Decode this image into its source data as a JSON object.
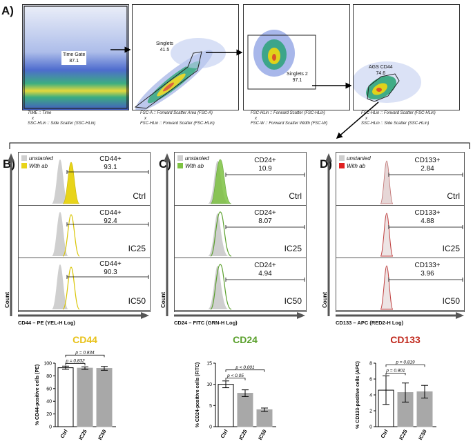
{
  "panel_a": {
    "letter": "A)",
    "plots": [
      {
        "gate_name": "Time Gate",
        "gate_value": "87.1",
        "x_axis": "TIME :: Time",
        "sep": "x",
        "y_axis": "SSC-HLin :: Side Scatter (SSC-HLin)"
      },
      {
        "gate_name": "Singlets",
        "gate_value": "41.5",
        "x_axis": "FSC-A :: Forward Scatter Area (FSC-A)",
        "sep": "x",
        "y_axis": "FSC-HLin :: Forward Scatter (FSC-HLin)"
      },
      {
        "gate_name": "Singlets 2",
        "gate_value": "97.1",
        "x_axis": "FSC-HLin :: Forward Scatter (FSC-HLin)",
        "sep": "x",
        "y_axis": "FSC-W :: Forward Scatter Width (FSC-W)"
      },
      {
        "gate_name": "AGS CD44",
        "gate_value": "74.6",
        "x_axis": "FSC-HLin :: Forward Scatter (FSC-HLin)",
        "sep": "x",
        "y_axis": "SSC-HLin :: Side Scatter (SSC-HLin)"
      }
    ]
  },
  "histograms": [
    {
      "letter": "B)",
      "legend": {
        "unstained": "unstanied",
        "with_ab": "With ab"
      },
      "color": "#e8d41a",
      "x_label": "CD44 – PE (YEL-H Log)",
      "count_label": "Count",
      "rows": [
        {
          "condition": "Ctrl",
          "marker": "CD44+",
          "value": "93.1"
        },
        {
          "condition": "IC25",
          "marker": "CD44+",
          "value": "92.4"
        },
        {
          "condition": "IC50",
          "marker": "CD44+",
          "value": "90.3"
        }
      ]
    },
    {
      "letter": "C)",
      "legend": {
        "unstained": "unstanied",
        "with_ab": "With ab"
      },
      "color": "#7dc242",
      "x_label": "CD24 – FITC (GRN-H Log)",
      "count_label": "Count",
      "rows": [
        {
          "condition": "Ctrl",
          "marker": "CD24+",
          "value": "10.9"
        },
        {
          "condition": "IC25",
          "marker": "CD24+",
          "value": "8.07"
        },
        {
          "condition": "IC50",
          "marker": "CD24+",
          "value": "4.94"
        }
      ]
    },
    {
      "letter": "D)",
      "legend": {
        "unstained": "unstanied",
        "with_ab": "With ab"
      },
      "color": "#c0392b",
      "x_label": "CD133 – APC (RED2-H Log)",
      "count_label": "Count",
      "rows": [
        {
          "condition": "Ctrl",
          "marker": "CD133+",
          "value": "2.84"
        },
        {
          "condition": "IC25",
          "marker": "CD133+",
          "value": "4.88"
        },
        {
          "condition": "IC50",
          "marker": "CD133+",
          "value": "3.96"
        }
      ]
    }
  ],
  "chart_data": [
    {
      "type": "bar",
      "title": "CD44",
      "title_color": "#e8c21a",
      "categories": [
        "Ctrl",
        "IC25",
        "IC50"
      ],
      "values": [
        92.8,
        92.2,
        91.8
      ],
      "errors": [
        2.5,
        2.0,
        3.0
      ],
      "ylabel": "% CD44-positive cells (PE)",
      "ylim": [
        0,
        100
      ],
      "yticks": [
        0,
        20,
        40,
        60,
        80,
        100
      ],
      "annotations": [
        {
          "text": "p = 0.832",
          "from": 0,
          "to": 1
        },
        {
          "text": "p = 0.834",
          "from": 0,
          "to": 2
        }
      ]
    },
    {
      "type": "bar",
      "title": "CD24",
      "title_color": "#5aa02c",
      "categories": [
        "Ctrl",
        "IC25",
        "IC50"
      ],
      "values": [
        10.0,
        7.9,
        4.0
      ],
      "errors": [
        0.8,
        0.8,
        0.4
      ],
      "ylabel": "% CD24-positive cells (FITC)",
      "ylim": [
        0,
        15
      ],
      "yticks": [
        0,
        5,
        10,
        15
      ],
      "annotations": [
        {
          "text": "p < 0.05",
          "from": 0,
          "to": 1
        },
        {
          "text": "p < 0.001",
          "from": 0,
          "to": 2
        }
      ]
    },
    {
      "type": "bar",
      "title": "CD133",
      "title_color": "#c0271b",
      "categories": [
        "Ctrl",
        "IC25",
        "IC50"
      ],
      "values": [
        4.6,
        4.3,
        4.4
      ],
      "errors": [
        1.8,
        1.2,
        0.8
      ],
      "ylabel": "% CD133-positive cells (APC)",
      "ylim": [
        0,
        8
      ],
      "yticks": [
        0,
        2,
        4,
        6,
        8
      ],
      "annotations": [
        {
          "text": "p = 0.801",
          "from": 0,
          "to": 1
        },
        {
          "text": "p = 0.819",
          "from": 0,
          "to": 2
        }
      ]
    }
  ]
}
